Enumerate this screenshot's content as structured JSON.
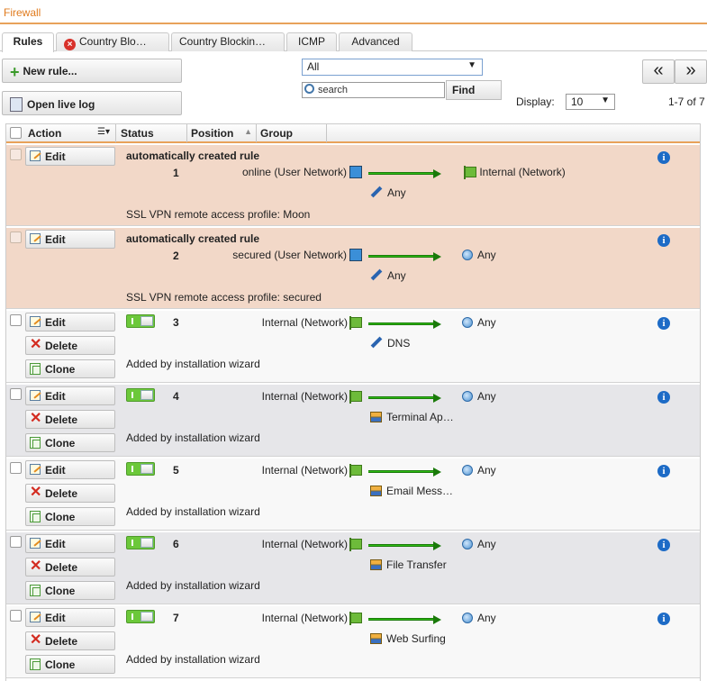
{
  "page": {
    "title": "Firewall"
  },
  "tabs": [
    {
      "label": "Rules",
      "active": true
    },
    {
      "label": "Country Blo…",
      "icon": "error-icon"
    },
    {
      "label": "Country Blockin…"
    },
    {
      "label": "ICMP"
    },
    {
      "label": "Advanced"
    }
  ],
  "toolbar": {
    "new_rule_label": "New rule...",
    "open_live_log_label": "Open live log",
    "filter_value": "All",
    "search_placeholder": "search",
    "find_label": "Find",
    "display_label": "Display:",
    "display_value": "10",
    "count_text": "1-7 of 7",
    "prev_label": "«",
    "next_label": "»"
  },
  "columns": {
    "action": "Action",
    "status": "Status",
    "position": "Position",
    "group": "Group"
  },
  "buttons": {
    "edit": "Edit",
    "delete": "Delete",
    "clone": "Clone"
  },
  "rules": [
    {
      "type": "auto",
      "title": "automatically created rule",
      "number": "1",
      "source": "online (User Network)",
      "destination": "Internal (Network)",
      "service": "Any",
      "comment": "SSL VPN remote access profile: Moon"
    },
    {
      "type": "auto",
      "title": "automatically created rule",
      "number": "2",
      "source": "secured (User Network)",
      "destination": "Any",
      "service": "Any",
      "comment": "SSL VPN remote access profile: secured"
    },
    {
      "type": "normal",
      "number": "3",
      "source": "Internal (Network)",
      "destination": "Any",
      "service": "DNS",
      "comment": "Added by installation wizard",
      "enabled": true
    },
    {
      "type": "normal",
      "number": "4",
      "source": "Internal (Network)",
      "destination": "Any",
      "service": "Terminal Ap…",
      "comment": "Added by installation wizard",
      "enabled": true
    },
    {
      "type": "normal",
      "number": "5",
      "source": "Internal (Network)",
      "destination": "Any",
      "service": "Email Mess…",
      "comment": "Added by installation wizard",
      "enabled": true
    },
    {
      "type": "normal",
      "number": "6",
      "source": "Internal (Network)",
      "destination": "Any",
      "service": "File Transfer",
      "comment": "Added by installation wizard",
      "enabled": true
    },
    {
      "type": "normal",
      "number": "7",
      "source": "Internal (Network)",
      "destination": "Any",
      "service": "Web Surfing",
      "comment": "Added by installation wizard",
      "enabled": true
    }
  ],
  "icons": {
    "add": "plus-icon",
    "log": "log-icon",
    "search": "search-icon",
    "edit": "edit-icon",
    "delete": "delete-icon",
    "clone": "clone-icon",
    "info": "info-icon",
    "user_network": "user-network-icon",
    "network": "network-icon",
    "any": "globe-icon",
    "service_any": "wrench-icon",
    "service": "server-icon"
  },
  "colors": {
    "accent": "#e07b1e",
    "auto_row": "#f2d8c8",
    "toggle_on": "#6cc83a",
    "arrow": "#2ebd14"
  }
}
